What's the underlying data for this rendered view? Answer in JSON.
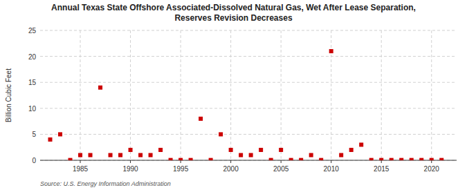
{
  "chart_data": {
    "type": "scatter",
    "title": "Annual Texas State Offshore Associated-Dissolved Natural Gas, Wet After Lease Separation,\nReserves Revision Decreases",
    "y_label": "Billion Cubic Feet",
    "annotations": [
      "Source: U.S. Energy Information Administration"
    ],
    "x": [
      1982,
      1983,
      1984,
      1985,
      1986,
      1987,
      1988,
      1989,
      1990,
      1991,
      1992,
      1993,
      1994,
      1995,
      1996,
      1997,
      1998,
      1999,
      2000,
      2001,
      2002,
      2003,
      2004,
      2005,
      2006,
      2007,
      2008,
      2009,
      2010,
      2011,
      2012,
      2013,
      2014,
      2015,
      2016,
      2017,
      2018,
      2019,
      2020,
      2021
    ],
    "values": [
      4.0,
      5.0,
      0.05,
      1.0,
      1.0,
      14.0,
      1.0,
      1.0,
      2.0,
      1.0,
      1.0,
      2.0,
      0.05,
      0.05,
      0.05,
      8.0,
      0.05,
      5.0,
      2.0,
      1.0,
      1.0,
      2.0,
      0.05,
      2.0,
      0.05,
      0.05,
      1.0,
      0.05,
      21.0,
      1.0,
      2.0,
      3.0,
      0.05,
      0.05,
      0.05,
      0.05,
      0.05,
      0.05,
      0.05,
      0.05
    ],
    "color": "#cc0000",
    "marker": "square",
    "xlim": [
      1981,
      2022.5
    ],
    "xticks": [
      1985,
      1990,
      1995,
      2000,
      2005,
      2010,
      2015,
      2020
    ],
    "ylim": [
      0,
      25
    ],
    "yticks": [
      0,
      5,
      10,
      15,
      20,
      25
    ],
    "grid": true
  }
}
